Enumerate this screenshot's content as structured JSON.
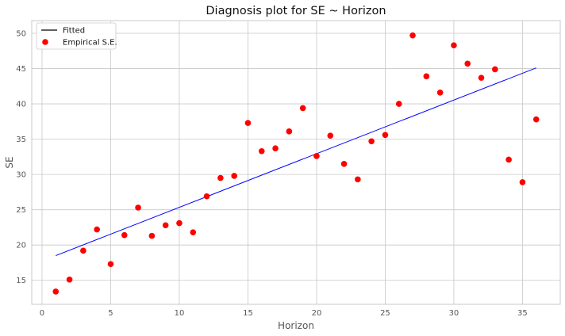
{
  "chart_data": {
    "type": "scatter",
    "title": "Diagnosis plot for SE ~ Horizon",
    "xlabel": "Horizon",
    "ylabel": "SE",
    "xlim": [
      -0.75,
      37.75
    ],
    "ylim": [
      11.6,
      51.8
    ],
    "xticks": [
      0,
      5,
      10,
      15,
      20,
      25,
      30,
      35
    ],
    "yticks": [
      15,
      20,
      25,
      30,
      35,
      40,
      45,
      50
    ],
    "grid": true,
    "legend_position": "top-left",
    "series": [
      {
        "name": "Fitted",
        "kind": "line",
        "color": "#0000ff",
        "x": [
          1,
          36
        ],
        "y": [
          18.5,
          45.1
        ]
      },
      {
        "name": "Empirical S.E.",
        "kind": "scatter",
        "color": "#ff0000",
        "x": [
          1,
          2,
          3,
          4,
          5,
          6,
          7,
          8,
          9,
          10,
          11,
          12,
          13,
          14,
          15,
          16,
          17,
          18,
          19,
          20,
          21,
          22,
          23,
          24,
          25,
          26,
          27,
          28,
          29,
          30,
          31,
          32,
          33,
          34,
          35,
          36
        ],
        "y": [
          13.4,
          15.1,
          19.2,
          22.2,
          17.3,
          21.4,
          25.3,
          21.3,
          22.8,
          23.1,
          21.8,
          26.9,
          29.5,
          29.8,
          37.3,
          33.3,
          33.7,
          36.1,
          39.4,
          32.6,
          35.5,
          31.5,
          29.3,
          34.7,
          35.6,
          40.0,
          49.7,
          43.9,
          41.6,
          48.3,
          45.7,
          43.7,
          44.9,
          32.1,
          28.9,
          37.8
        ]
      }
    ]
  }
}
